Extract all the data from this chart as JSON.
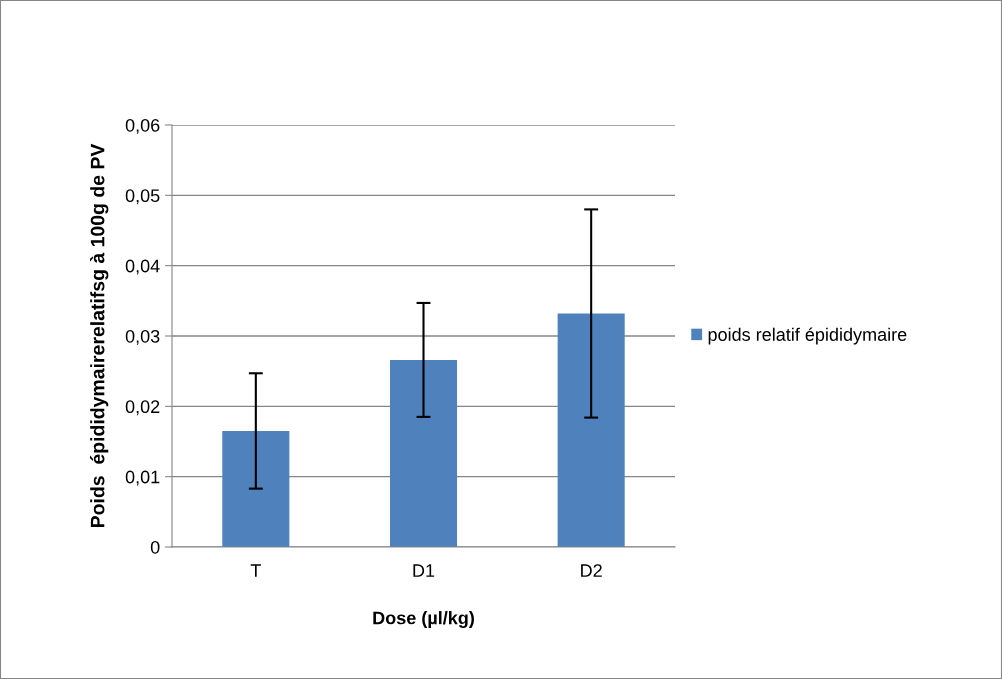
{
  "chart_data": {
    "type": "bar",
    "xlabel": "Dose (µl/kg)",
    "ylabel": "Poids  épididymairerelatifsg à 100g de PV",
    "categories": [
      "T",
      "D1",
      "D2"
    ],
    "series": [
      {
        "name": "poids relatif épididymaire",
        "color": "#4f81bd",
        "values": [
          0.0165,
          0.0266,
          0.0332
        ],
        "errors": [
          0.0082,
          0.0081,
          0.0148
        ]
      }
    ],
    "ylim": [
      0,
      0.06
    ],
    "yticks": [
      {
        "value": 0,
        "label": "0"
      },
      {
        "value": 0.01,
        "label": "0,01"
      },
      {
        "value": 0.02,
        "label": "0,02"
      },
      {
        "value": 0.03,
        "label": "0,03"
      },
      {
        "value": 0.04,
        "label": "0,04"
      },
      {
        "value": 0.05,
        "label": "0,05"
      },
      {
        "value": 0.06,
        "label": "0,06"
      }
    ],
    "grid": "y",
    "legend": "right"
  }
}
